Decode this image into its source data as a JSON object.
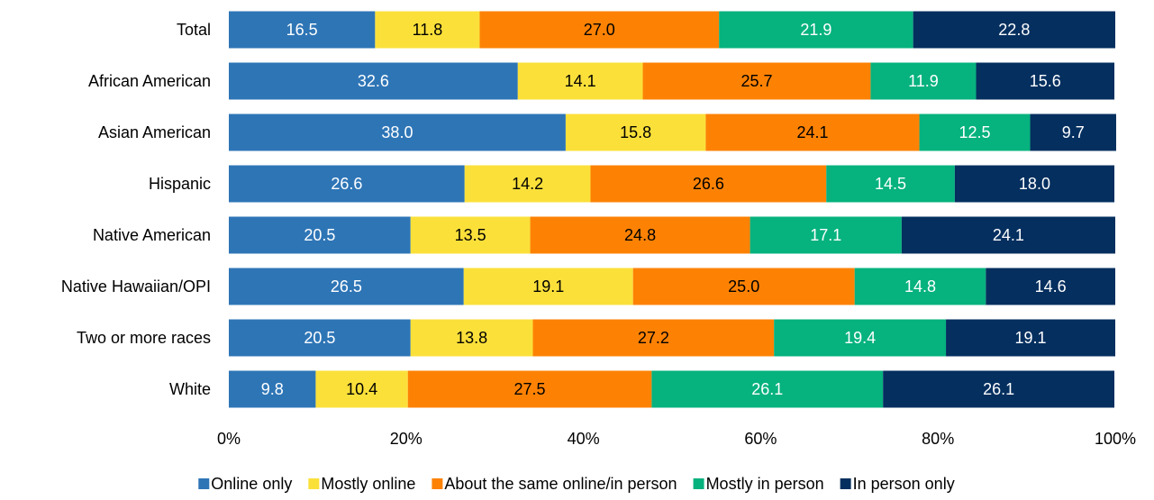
{
  "chart_data": {
    "type": "stacked_barh",
    "categories": [
      "Total",
      "African American",
      "Asian American",
      "Hispanic",
      "Native American",
      "Native Hawaiian/OPI",
      "Two or more races",
      "White"
    ],
    "series": [
      {
        "name": "Online only",
        "color": "#2e75b6",
        "values": [
          16.5,
          32.6,
          38.0,
          26.6,
          20.5,
          26.5,
          20.5,
          9.8
        ],
        "value_labels": [
          "16.5",
          "32.6",
          "38.0",
          "26.6",
          "20.5",
          "26.5",
          "20.5",
          "9.8"
        ]
      },
      {
        "name": "Mostly online",
        "color": "#fbe03a",
        "values": [
          11.8,
          14.1,
          15.8,
          14.2,
          13.5,
          19.1,
          13.8,
          10.4
        ],
        "value_labels": [
          "11.8",
          "14.1",
          "15.8",
          "14.2",
          "13.5",
          "19.1",
          "13.8",
          "10.4"
        ]
      },
      {
        "name": "About the same online/in person",
        "color": "#fd8204",
        "values": [
          27.0,
          25.7,
          24.1,
          26.6,
          24.8,
          25.0,
          27.2,
          27.5
        ],
        "value_labels": [
          "27.0",
          "25.7",
          "24.1",
          "26.6",
          "24.8",
          "25.0",
          "27.2",
          "27.5"
        ]
      },
      {
        "name": "Mostly in person",
        "color": "#06b27e",
        "values": [
          21.9,
          11.9,
          12.5,
          14.5,
          17.1,
          14.8,
          19.4,
          26.1
        ],
        "value_labels": [
          "21.9",
          "11.9",
          "12.5",
          "14.5",
          "17.1",
          "14.8",
          "19.4",
          "26.1"
        ]
      },
      {
        "name": "In person only",
        "color": "#042f5f",
        "values": [
          22.8,
          15.6,
          9.7,
          18.0,
          24.1,
          14.6,
          19.1,
          26.1
        ],
        "value_labels": [
          "22.8",
          "15.6",
          "9.7",
          "18.0",
          "24.1",
          "14.6",
          "19.1",
          "26.1"
        ]
      }
    ],
    "xlim": [
      0,
      100
    ],
    "xticks": [
      {
        "value": 0,
        "label": "0%"
      },
      {
        "value": 20,
        "label": "20%"
      },
      {
        "value": 40,
        "label": "40%"
      },
      {
        "value": 60,
        "label": "60%"
      },
      {
        "value": 80,
        "label": "80%"
      },
      {
        "value": 100,
        "label": "100%"
      }
    ],
    "grid": false,
    "legend": "bottom"
  }
}
